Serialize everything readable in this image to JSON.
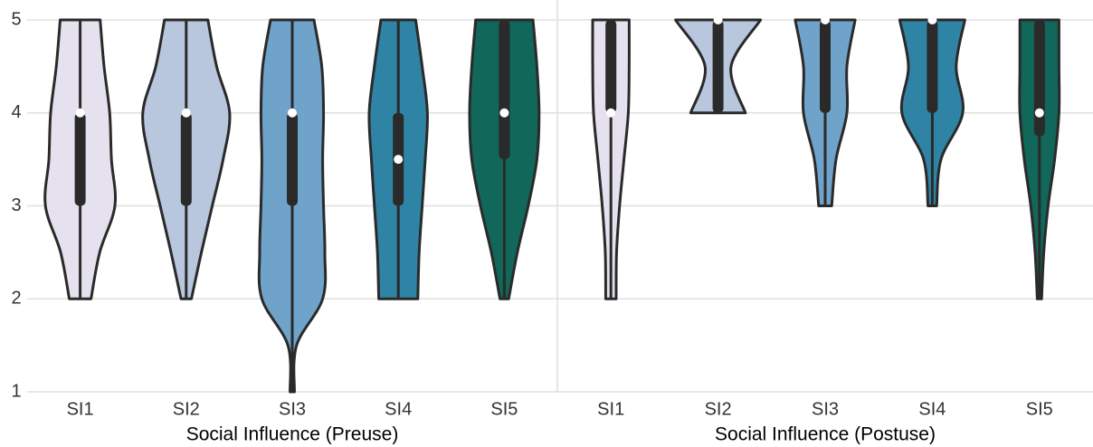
{
  "chart_data": [
    {
      "type": "violin",
      "xlabel": "Social Influence (Preuse)",
      "categories": [
        "SI1",
        "SI2",
        "SI3",
        "SI4",
        "SI5"
      ],
      "colors": [
        "#e6e1ee",
        "#b8c6de",
        "#6fa3c9",
        "#2f84a6",
        "#10675a"
      ],
      "ylim": [
        1,
        5
      ],
      "yticks": [
        1,
        2,
        3,
        4,
        5
      ],
      "grid": true,
      "ytick_labels": true,
      "density_at": [
        1,
        1.5,
        2,
        2.5,
        3,
        3.5,
        4,
        4.5,
        5
      ],
      "violins": [
        {
          "min": 2,
          "q1": 3,
          "median": 4,
          "q3": 4,
          "max": 5,
          "density": [
            null,
            null,
            0.25,
            0.45,
            0.8,
            0.72,
            0.68,
            0.55,
            0.46
          ]
        },
        {
          "min": 2,
          "q1": 3,
          "median": 4,
          "q3": 4,
          "max": 5,
          "density": [
            null,
            null,
            0.12,
            0.35,
            0.6,
            0.85,
            1.0,
            0.7,
            0.5
          ]
        },
        {
          "min": 1,
          "q1": 3,
          "median": 4,
          "q3": 4,
          "max": 5,
          "density": [
            0.05,
            0.1,
            0.7,
            0.75,
            0.72,
            0.7,
            0.72,
            0.68,
            0.5
          ]
        },
        {
          "min": 2,
          "q1": 3,
          "median": 3.5,
          "q3": 4,
          "max": 5,
          "density": [
            null,
            null,
            0.45,
            0.48,
            0.55,
            0.62,
            0.67,
            0.55,
            0.4
          ]
        },
        {
          "min": 2,
          "q1": 3.5,
          "median": 4,
          "q3": 5,
          "max": 5,
          "density": [
            null,
            null,
            0.1,
            0.3,
            0.55,
            0.75,
            0.8,
            0.75,
            0.66
          ]
        }
      ]
    },
    {
      "type": "violin",
      "xlabel": "Social Influence (Postuse)",
      "categories": [
        "SI1",
        "SI2",
        "SI3",
        "SI4",
        "SI5"
      ],
      "colors": [
        "#e6e1ee",
        "#b8c6de",
        "#6fa3c9",
        "#2f84a6",
        "#10675a"
      ],
      "ylim": [
        1,
        5
      ],
      "yticks": [
        1,
        2,
        3,
        4,
        5
      ],
      "grid": true,
      "ytick_labels": false,
      "density_at": [
        1,
        1.5,
        2,
        2.5,
        3,
        3.5,
        4,
        4.5,
        5
      ],
      "violins": [
        {
          "min": 2,
          "q1": 4,
          "median": 4,
          "q3": 5,
          "max": 5,
          "density": [
            null,
            null,
            0.12,
            0.13,
            0.2,
            0.3,
            0.4,
            0.42,
            0.42
          ]
        },
        {
          "min": 4,
          "q1": 4,
          "median": 5,
          "q3": 5,
          "max": 5,
          "density": [
            null,
            null,
            null,
            null,
            null,
            null,
            0.63,
            0.3,
            0.98
          ]
        },
        {
          "min": 3,
          "q1": 4,
          "median": 5,
          "q3": 5,
          "max": 5,
          "density": [
            null,
            null,
            null,
            null,
            0.15,
            0.25,
            0.5,
            0.5,
            0.69
          ]
        },
        {
          "min": 3,
          "q1": 4,
          "median": 5,
          "q3": 5,
          "max": 5,
          "density": [
            null,
            null,
            null,
            null,
            0.1,
            0.2,
            0.7,
            0.55,
            0.75
          ]
        },
        {
          "min": 2,
          "q1": 3.75,
          "median": 4,
          "q3": 5,
          "max": 5,
          "density": [
            null,
            null,
            0.05,
            0.1,
            0.2,
            0.35,
            0.45,
            0.45,
            0.45
          ]
        }
      ]
    }
  ]
}
